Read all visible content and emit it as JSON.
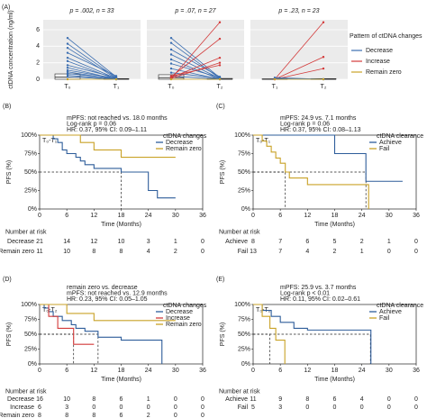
{
  "chart_data": [
    {
      "type": "paired",
      "label": "(A)",
      "ylabel": "ctDNA concentration (ng/ml)",
      "ylim": [
        0,
        7.2
      ],
      "yticks": [
        0,
        2,
        4,
        6
      ],
      "legend_title": "Pattern of ctDNA changes",
      "series": [
        {
          "name": "Decrease",
          "color": "#3a6db0"
        },
        {
          "name": "Increase",
          "color": "#d33a3a"
        },
        {
          "name": "Remain zero",
          "color": "#c9a227"
        }
      ],
      "panels": [
        {
          "title": "p = .002, n = 33",
          "categories": [
            "T₀",
            "T₁"
          ],
          "boxes": [
            [
              0,
              0.25,
              0.65
            ],
            [
              0,
              0.02,
              0.08
            ]
          ],
          "pairs": [
            {
              "values": [
                5,
                0.3
              ],
              "color": "#3a6db0"
            },
            {
              "values": [
                4.3,
                0.2
              ],
              "color": "#3a6db0"
            },
            {
              "values": [
                3.8,
                0.1
              ],
              "color": "#3a6db0"
            },
            {
              "values": [
                3.2,
                0.4
              ],
              "color": "#3a6db0"
            },
            {
              "values": [
                2.6,
                0.1
              ],
              "color": "#3a6db0"
            },
            {
              "values": [
                2.2,
                0
              ],
              "color": "#3a6db0"
            },
            {
              "values": [
                1.7,
                0.2
              ],
              "color": "#3a6db0"
            },
            {
              "values": [
                1.4,
                0
              ],
              "color": "#3a6db0"
            },
            {
              "values": [
                1.1,
                0.1
              ],
              "color": "#3a6db0"
            },
            {
              "values": [
                0.9,
                0
              ],
              "color": "#3a6db0"
            },
            {
              "values": [
                0.7,
                0.1
              ],
              "color": "#3a6db0"
            },
            {
              "values": [
                0.5,
                0
              ],
              "color": "#3a6db0"
            },
            {
              "values": [
                0.3,
                0
              ],
              "color": "#3a6db0"
            },
            {
              "values": [
                0,
                0
              ],
              "color": "#c9a227"
            }
          ]
        },
        {
          "title": "p = .07, n = 27",
          "categories": [
            "T₀",
            "T₂"
          ],
          "boxes": [
            [
              0,
              0.2,
              0.55
            ],
            [
              0,
              0.02,
              0.1
            ]
          ],
          "pairs": [
            {
              "values": [
                5,
                0.2
              ],
              "color": "#3a6db0"
            },
            {
              "values": [
                4.4,
                0.1
              ],
              "color": "#3a6db0"
            },
            {
              "values": [
                3.6,
                0.3
              ],
              "color": "#3a6db0"
            },
            {
              "values": [
                3,
                0.1
              ],
              "color": "#3a6db0"
            },
            {
              "values": [
                2.4,
                0
              ],
              "color": "#3a6db0"
            },
            {
              "values": [
                1.9,
                0.2
              ],
              "color": "#3a6db0"
            },
            {
              "values": [
                1.3,
                0
              ],
              "color": "#3a6db0"
            },
            {
              "values": [
                0.8,
                0.1
              ],
              "color": "#3a6db0"
            },
            {
              "values": [
                0.4,
                0
              ],
              "color": "#3a6db0"
            },
            {
              "values": [
                0.1,
                6.9
              ],
              "color": "#d33a3a"
            },
            {
              "values": [
                0.3,
                4.9
              ],
              "color": "#d33a3a"
            },
            {
              "values": [
                0.2,
                2.6
              ],
              "color": "#d33a3a"
            },
            {
              "values": [
                0.1,
                2
              ],
              "color": "#d33a3a"
            },
            {
              "values": [
                0.4,
                1.7
              ],
              "color": "#d33a3a"
            },
            {
              "values": [
                0,
                0
              ],
              "color": "#c9a227"
            }
          ]
        },
        {
          "title": "p = .23, n = 23",
          "categories": [
            "T₁",
            "T₂"
          ],
          "boxes": [
            [
              0,
              0,
              0.05
            ],
            [
              0,
              0,
              0.08
            ]
          ],
          "pairs": [
            {
              "values": [
                0,
                6.9
              ],
              "color": "#d33a3a"
            },
            {
              "values": [
                0,
                2.7
              ],
              "color": "#d33a3a"
            },
            {
              "values": [
                0,
                1.3
              ],
              "color": "#d33a3a"
            },
            {
              "values": [
                0.2,
                0
              ],
              "color": "#3a6db0"
            },
            {
              "values": [
                0.1,
                0
              ],
              "color": "#3a6db0"
            },
            {
              "values": [
                0,
                0
              ],
              "color": "#c9a227"
            }
          ]
        }
      ]
    },
    {
      "type": "km",
      "label": "(B)",
      "subtitle": "T₀-T₁",
      "annotations": [
        "mPFS: not reached vs. 18.0 months",
        "Log-rank p = 0.06",
        "HR: 0.37, 95% CI: 0.09–1.11"
      ],
      "legend_title": "ctDNA changes",
      "xlabel": "Time (Months)",
      "ylabel": "PFS (%)",
      "xlim": [
        0,
        36
      ],
      "xticks": [
        0,
        6,
        12,
        18,
        24,
        30,
        36
      ],
      "ylim": [
        0,
        100
      ],
      "yticks": [
        {
          "value": 0,
          "label": "0%"
        },
        {
          "value": 25,
          "label": "25%"
        },
        {
          "value": 50,
          "label": "50%"
        },
        {
          "value": 75,
          "label": "75%"
        },
        {
          "value": 100,
          "label": "100%"
        }
      ],
      "median_lines": [
        18
      ],
      "median_level": 50,
      "series": [
        {
          "name": "Decrease",
          "color": "#2e5d9a",
          "x": [
            0,
            3,
            4,
            5,
            6,
            8,
            9,
            10,
            12,
            18,
            24,
            26,
            30
          ],
          "values": [
            100,
            95,
            90,
            80,
            75,
            70,
            65,
            60,
            55,
            50,
            25,
            15,
            15
          ]
        },
        {
          "name": "Remain zero",
          "color": "#c9a227",
          "x": [
            0,
            3,
            9,
            12,
            18,
            30
          ],
          "values": [
            100,
            100,
            90,
            80,
            70,
            70
          ]
        }
      ],
      "risk": {
        "title": "Number at risk",
        "rows": [
          {
            "name": "Decrease",
            "values": [
              21,
              14,
              12,
              10,
              3,
              1,
              0
            ]
          },
          {
            "name": "Remain zero",
            "values": [
              11,
              10,
              8,
              8,
              4,
              2,
              0
            ]
          }
        ]
      }
    },
    {
      "type": "km",
      "label": "(C)",
      "subtitle": "T₀-T₁",
      "annotations": [
        "mPFS: 24.9 vs. 7.1 months",
        "Log-rank p = 0.06",
        "HR: 0.37, 95% CI: 0.08–1.13"
      ],
      "legend_title": "ctDNA clearance",
      "xlabel": "Time (Months)",
      "ylabel": "PFS (%)",
      "xlim": [
        0,
        36
      ],
      "xticks": [
        0,
        6,
        12,
        18,
        24,
        30,
        36
      ],
      "ylim": [
        0,
        100
      ],
      "yticks": [
        {
          "value": 0,
          "label": "0%"
        },
        {
          "value": 25,
          "label": "25%"
        },
        {
          "value": 50,
          "label": "50%"
        },
        {
          "value": 75,
          "label": "75%"
        },
        {
          "value": 100,
          "label": "100%"
        }
      ],
      "median_lines": [
        7.1,
        24.9
      ],
      "median_level": 50,
      "series": [
        {
          "name": "Achieve",
          "color": "#2e5d9a",
          "x": [
            0,
            12,
            18,
            24.9,
            33
          ],
          "values": [
            100,
            100,
            75,
            37.5,
            37.5
          ]
        },
        {
          "name": "Fail",
          "color": "#c9a227",
          "x": [
            0,
            2,
            3,
            4,
            5,
            6,
            7.1,
            8,
            12,
            24,
            25.5
          ],
          "values": [
            100,
            92,
            85,
            77,
            69,
            62,
            50,
            42,
            33,
            33,
            0
          ]
        }
      ],
      "risk": {
        "title": "Number at risk",
        "rows": [
          {
            "name": "Achieve",
            "values": [
              8,
              7,
              6,
              5,
              2,
              1,
              0
            ]
          },
          {
            "name": "Fail",
            "values": [
              13,
              7,
              4,
              2,
              1,
              0,
              0
            ]
          }
        ]
      }
    },
    {
      "type": "km",
      "label": "(D)",
      "subtitle": "T₀-T₂",
      "annotations": [
        "remain zero vs. decrease",
        "mPFS: not reached vs. 12.9 months",
        "HR: 0.23, 95% CI: 0.05–1.05"
      ],
      "legend_title": "ctDNA changes",
      "xlabel": "Time (Months)",
      "ylabel": "PFS (%)",
      "xlim": [
        0,
        36
      ],
      "xticks": [
        0,
        6,
        12,
        18,
        24,
        30,
        36
      ],
      "ylim": [
        0,
        100
      ],
      "yticks": [
        {
          "value": 0,
          "label": "0%"
        },
        {
          "value": 25,
          "label": "25%"
        },
        {
          "value": 50,
          "label": "50%"
        },
        {
          "value": 75,
          "label": "75%"
        },
        {
          "value": 100,
          "label": "100%"
        }
      ],
      "median_lines": [
        7.5,
        12.9
      ],
      "median_level": 50,
      "series": [
        {
          "name": "Decrease",
          "color": "#2e5d9a",
          "x": [
            0,
            1,
            2,
            3,
            5,
            7,
            8,
            10,
            12.9,
            18,
            26,
            27
          ],
          "values": [
            100,
            94,
            88,
            80,
            73,
            66,
            60,
            55,
            45,
            40,
            40,
            0
          ]
        },
        {
          "name": "Increase",
          "color": "#d33a3a",
          "x": [
            0,
            2,
            4,
            7.5,
            12
          ],
          "values": [
            100,
            80,
            60,
            33,
            33
          ]
        },
        {
          "name": "Remain zero",
          "color": "#c9a227",
          "x": [
            0,
            3,
            6,
            12,
            30
          ],
          "values": [
            100,
            100,
            85,
            73,
            73
          ]
        }
      ],
      "risk": {
        "title": "Number at risk",
        "rows": [
          {
            "name": "Decrease",
            "values": [
              16,
              10,
              8,
              6,
              1,
              0,
              0
            ]
          },
          {
            "name": "Increase",
            "values": [
              6,
              3,
              0,
              0,
              0,
              0,
              0
            ]
          },
          {
            "name": "Remain zero",
            "values": [
              8,
              8,
              8,
              6,
              2,
              0,
              0
            ]
          }
        ]
      }
    },
    {
      "type": "km",
      "label": "(E)",
      "subtitle": "T₀-T₂",
      "annotations": [
        "mPFS: 25.9 vs. 3.7 months",
        "Log-rank p < 0.01",
        "HR: 0.11, 95% CI: 0.02–0.61"
      ],
      "legend_title": "ctDNA clearance",
      "xlabel": "Time (Months)",
      "ylabel": "PFS (%)",
      "xlim": [
        0,
        36
      ],
      "xticks": [
        0,
        6,
        12,
        18,
        24,
        30,
        36
      ],
      "ylim": [
        0,
        100
      ],
      "yticks": [
        {
          "value": 0,
          "label": "0%"
        },
        {
          "value": 25,
          "label": "25%"
        },
        {
          "value": 50,
          "label": "50%"
        },
        {
          "value": 75,
          "label": "75%"
        },
        {
          "value": 100,
          "label": "100%"
        }
      ],
      "median_lines": [
        3.7,
        25.9
      ],
      "median_level": 50,
      "series": [
        {
          "name": "Achieve",
          "color": "#2e5d9a",
          "x": [
            0,
            2,
            4,
            6,
            9,
            12,
            25.9,
            26
          ],
          "values": [
            100,
            90,
            80,
            70,
            60,
            57,
            57,
            0
          ]
        },
        {
          "name": "Fail",
          "color": "#c9a227",
          "x": [
            0,
            2,
            3.7,
            5,
            7
          ],
          "values": [
            100,
            80,
            60,
            40,
            0
          ]
        }
      ],
      "risk": {
        "title": "Number at risk",
        "rows": [
          {
            "name": "Achieve",
            "values": [
              11,
              9,
              8,
              6,
              4,
              0,
              0
            ]
          },
          {
            "name": "Fail",
            "values": [
              5,
              3,
              0,
              0,
              0,
              0,
              0
            ]
          }
        ]
      }
    }
  ]
}
